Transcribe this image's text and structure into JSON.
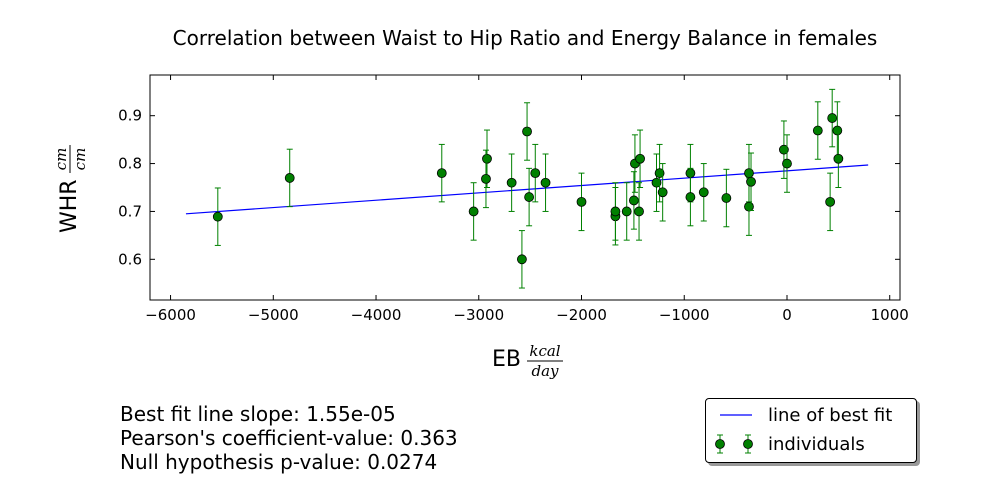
{
  "chart_data": {
    "type": "scatter",
    "title": "Correlation between Waist to Hip Ratio and Energy Balance in females",
    "xlabel": "EB",
    "xlabel_unit_num": "kcal",
    "xlabel_unit_den": "day",
    "ylabel": "WHR",
    "ylabel_unit_num": "cm",
    "ylabel_unit_den": "cm",
    "xlim": [
      -6200,
      1100
    ],
    "ylim": [
      0.515,
      0.985
    ],
    "xticks": [
      -6000,
      -5000,
      -4000,
      -3000,
      -2000,
      -1000,
      0,
      1000
    ],
    "xtick_labels": [
      "−6000",
      "−5000",
      "−4000",
      "−3000",
      "−2000",
      "−1000",
      "0",
      "1000"
    ],
    "yticks": [
      0.6,
      0.7,
      0.8,
      0.9
    ],
    "ytick_labels": [
      "0.6",
      "0.7",
      "0.8",
      "0.9"
    ],
    "grid": false,
    "legend_placement": "below-right",
    "series": [
      {
        "name": "line of best fit",
        "type": "line",
        "color": "#0000ff",
        "x": [
          -5850,
          790
        ],
        "y": [
          0.695,
          0.797
        ]
      },
      {
        "name": "individuals",
        "type": "scatter",
        "color": "#008000",
        "error": 0.06,
        "points": [
          {
            "x": -5540,
            "y": 0.689
          },
          {
            "x": -4840,
            "y": 0.77
          },
          {
            "x": -3360,
            "y": 0.78
          },
          {
            "x": -3050,
            "y": 0.7
          },
          {
            "x": -2920,
            "y": 0.81
          },
          {
            "x": -2930,
            "y": 0.768
          },
          {
            "x": -2680,
            "y": 0.76
          },
          {
            "x": -2580,
            "y": 0.6
          },
          {
            "x": -2530,
            "y": 0.867
          },
          {
            "x": -2510,
            "y": 0.73
          },
          {
            "x": -2450,
            "y": 0.78
          },
          {
            "x": -2350,
            "y": 0.76
          },
          {
            "x": -2000,
            "y": 0.72
          },
          {
            "x": -1670,
            "y": 0.69
          },
          {
            "x": -1670,
            "y": 0.7
          },
          {
            "x": -1560,
            "y": 0.7
          },
          {
            "x": -1490,
            "y": 0.723
          },
          {
            "x": -1480,
            "y": 0.8
          },
          {
            "x": -1430,
            "y": 0.81
          },
          {
            "x": -1440,
            "y": 0.7
          },
          {
            "x": -1270,
            "y": 0.76
          },
          {
            "x": -1240,
            "y": 0.78
          },
          {
            "x": -1210,
            "y": 0.74
          },
          {
            "x": -940,
            "y": 0.78
          },
          {
            "x": -940,
            "y": 0.73
          },
          {
            "x": -810,
            "y": 0.74
          },
          {
            "x": -590,
            "y": 0.728
          },
          {
            "x": -370,
            "y": 0.78
          },
          {
            "x": -370,
            "y": 0.71
          },
          {
            "x": -350,
            "y": 0.762
          },
          {
            "x": -30,
            "y": 0.829
          },
          {
            "x": 0,
            "y": 0.8
          },
          {
            "x": 300,
            "y": 0.869
          },
          {
            "x": 420,
            "y": 0.72
          },
          {
            "x": 440,
            "y": 0.895
          },
          {
            "x": 490,
            "y": 0.869
          },
          {
            "x": 500,
            "y": 0.81
          }
        ]
      }
    ]
  },
  "annotations": {
    "slope": "Best fit line slope: 1.55e-05",
    "pearson": "Pearson's coefficient-value: 0.363",
    "pvalue": "Null hypothesis p-value: 0.0274"
  }
}
